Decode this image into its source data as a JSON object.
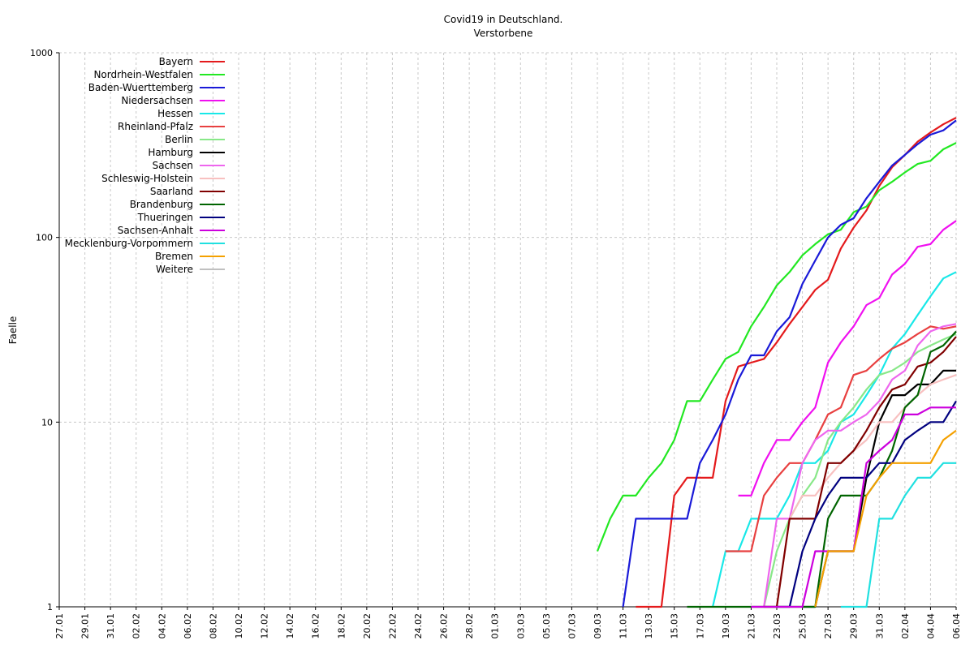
{
  "chart_data": {
    "type": "line",
    "title": "Covid19 in Deutschland.",
    "subtitle": "Verstorbene",
    "xlabel": "",
    "ylabel": "Faelle",
    "y_scale": "log",
    "ylim": [
      1,
      1000
    ],
    "y_ticks": [
      1,
      10,
      100,
      1000
    ],
    "grid": true,
    "legend_position": "top-left",
    "x_start": "27.01",
    "x_end": "06.04",
    "x_tick_labels": [
      "27.01",
      "29.01",
      "31.01",
      "02.02",
      "04.02",
      "06.02",
      "08.02",
      "10.02",
      "12.02",
      "14.02",
      "16.02",
      "18.02",
      "20.02",
      "22.02",
      "24.02",
      "26.02",
      "28.02",
      "01.03",
      "03.03",
      "05.03",
      "07.03",
      "09.03",
      "11.03",
      "13.03",
      "15.03",
      "17.03",
      "19.03",
      "21.03",
      "23.03",
      "25.03",
      "27.03",
      "29.03",
      "31.03",
      "02.04",
      "04.04",
      "06.04"
    ],
    "series": [
      {
        "name": "Bayern",
        "color": "#e41a1c",
        "x": [
          "12.03",
          "14.03",
          "15.03",
          "16.03",
          "17.03",
          "18.03",
          "19.03",
          "20.03",
          "21.03",
          "22.03",
          "23.03",
          "24.03",
          "25.03",
          "26.03",
          "27.03",
          "28.03",
          "29.03",
          "30.03",
          "31.03",
          "01.04",
          "02.04",
          "03.04",
          "04.04",
          "05.04",
          "06.04"
        ],
        "y": [
          1,
          1,
          4,
          5,
          5,
          5,
          13,
          20,
          21,
          22,
          27,
          34,
          42,
          52,
          59,
          87,
          113,
          140,
          190,
          240,
          280,
          330,
          370,
          410,
          445
        ]
      },
      {
        "name": "Nordrhein-Westfalen",
        "color": "#22e822",
        "x": [
          "09.03",
          "10.03",
          "11.03",
          "12.03",
          "13.03",
          "14.03",
          "15.03",
          "16.03",
          "17.03",
          "18.03",
          "19.03",
          "20.03",
          "21.03",
          "22.03",
          "23.03",
          "24.03",
          "25.03",
          "26.03",
          "27.03",
          "28.03",
          "29.03",
          "30.03",
          "31.03",
          "01.04",
          "02.04",
          "03.04",
          "04.04",
          "05.04",
          "06.04"
        ],
        "y": [
          2,
          3,
          4,
          4,
          5,
          6,
          8,
          13,
          13,
          17,
          22,
          24,
          33,
          42,
          55,
          65,
          80,
          92,
          104,
          110,
          137,
          147,
          180,
          200,
          225,
          250,
          260,
          300,
          325
        ]
      },
      {
        "name": "Baden-Wuerttemberg",
        "color": "#1a1ad8",
        "x": [
          "11.03",
          "12.03",
          "13.03",
          "14.03",
          "15.03",
          "16.03",
          "17.03",
          "18.03",
          "19.03",
          "20.03",
          "21.03",
          "22.03",
          "23.03",
          "24.03",
          "25.03",
          "26.03",
          "27.03",
          "28.03",
          "29.03",
          "30.03",
          "31.03",
          "01.04",
          "02.04",
          "03.04",
          "04.04",
          "05.04",
          "06.04"
        ],
        "y": [
          1,
          3,
          3,
          3,
          3,
          3,
          6,
          8,
          11,
          17,
          23,
          23,
          31,
          37,
          56,
          75,
          100,
          117,
          127,
          163,
          200,
          245,
          280,
          320,
          360,
          380,
          430
        ]
      },
      {
        "name": "Niedersachsen",
        "color": "#f010f0",
        "x": [
          "20.03",
          "21.03",
          "22.03",
          "23.03",
          "24.03",
          "25.03",
          "26.03",
          "27.03",
          "28.03",
          "29.03",
          "30.03",
          "31.03",
          "01.04",
          "02.04",
          "03.04",
          "04.04",
          "05.04",
          "06.04"
        ],
        "y": [
          4,
          4,
          6,
          8,
          8,
          10,
          12,
          21,
          27,
          33,
          43,
          47,
          63,
          72,
          89,
          92,
          110,
          123
        ]
      },
      {
        "name": "Hessen",
        "color": "#18e8e8",
        "x": [
          "18.03",
          "19.03",
          "20.03",
          "21.03",
          "22.03",
          "23.03",
          "24.03",
          "25.03",
          "26.03",
          "27.03",
          "28.03",
          "29.03",
          "30.03",
          "31.03",
          "01.04",
          "02.04",
          "03.04",
          "04.04",
          "05.04",
          "06.04"
        ],
        "y": [
          1,
          2,
          2,
          3,
          3,
          3,
          4,
          6,
          6,
          7,
          10,
          11,
          14,
          18,
          25,
          30,
          38,
          48,
          60,
          65
        ]
      },
      {
        "name": "Rheinland-Pfalz",
        "color": "#e84040",
        "x": [
          "19.03",
          "20.03",
          "21.03",
          "22.03",
          "23.03",
          "24.03",
          "25.03",
          "26.03",
          "27.03",
          "28.03",
          "29.03",
          "30.03",
          "31.03",
          "01.04",
          "02.04",
          "03.04",
          "04.04",
          "05.04",
          "06.04"
        ],
        "y": [
          2,
          2,
          2,
          4,
          5,
          6,
          6,
          8,
          11,
          12,
          18,
          19,
          22,
          25,
          27,
          30,
          33,
          32,
          33
        ]
      },
      {
        "name": "Berlin",
        "color": "#88e888",
        "x": [
          "22.03",
          "23.03",
          "24.03",
          "25.03",
          "26.03",
          "27.03",
          "28.03",
          "29.03",
          "30.03",
          "31.03",
          "01.04",
          "02.04",
          "03.04",
          "04.04",
          "05.04",
          "06.04"
        ],
        "y": [
          1,
          2,
          3,
          4,
          5,
          8,
          10,
          12,
          15,
          18,
          19,
          21,
          24,
          26,
          28,
          30
        ]
      },
      {
        "name": "Hamburg",
        "color": "#000000",
        "x": [
          "25.03",
          "26.03",
          "27.03",
          "28.03",
          "29.03",
          "30.03",
          "31.03",
          "01.04",
          "02.04",
          "03.04",
          "04.04",
          "05.04",
          "06.04"
        ],
        "y": [
          1,
          1,
          2,
          2,
          2,
          5,
          10,
          14,
          14,
          16,
          16,
          19,
          19
        ]
      },
      {
        "name": "Sachsen",
        "color": "#ee66ee",
        "x": [
          "21.03",
          "22.03",
          "23.03",
          "24.03",
          "25.03",
          "26.03",
          "27.03",
          "28.03",
          "29.03",
          "30.03",
          "31.03",
          "01.04",
          "02.04",
          "03.04",
          "04.04",
          "05.04",
          "06.04"
        ],
        "y": [
          1,
          1,
          3,
          3,
          6,
          8,
          9,
          9,
          10,
          11,
          13,
          17,
          19,
          26,
          31,
          33,
          34
        ]
      },
      {
        "name": "Schleswig-Holstein",
        "color": "#f8c0c0",
        "x": [
          "22.03",
          "23.03",
          "24.03",
          "25.03",
          "26.03",
          "27.03",
          "28.03",
          "29.03",
          "30.03",
          "31.03",
          "01.04",
          "02.04",
          "03.04",
          "04.04",
          "05.04",
          "06.04"
        ],
        "y": [
          1,
          1,
          3,
          4,
          4,
          5,
          6,
          7,
          8,
          10,
          10,
          12,
          14,
          16,
          17,
          18
        ]
      },
      {
        "name": "Saarland",
        "color": "#800000",
        "x": [
          "22.03",
          "23.03",
          "24.03",
          "25.03",
          "26.03",
          "27.03",
          "28.03",
          "29.03",
          "30.03",
          "31.03",
          "01.04",
          "02.04",
          "03.04",
          "04.04",
          "05.04",
          "06.04"
        ],
        "y": [
          1,
          1,
          3,
          3,
          3,
          6,
          6,
          7,
          9,
          12,
          15,
          16,
          20,
          21,
          24,
          29
        ]
      },
      {
        "name": "Brandenburg",
        "color": "#006400",
        "x": [
          "16.03",
          "17.03",
          "18.03",
          "19.03",
          "20.03",
          "21.03",
          "22.03",
          "23.03",
          "24.03",
          "25.03",
          "26.03",
          "27.03",
          "28.03",
          "29.03",
          "30.03",
          "31.03",
          "01.04",
          "02.04",
          "03.04",
          "04.04",
          "05.04",
          "06.04"
        ],
        "y": [
          1,
          1,
          1,
          1,
          1,
          1,
          1,
          1,
          1,
          1,
          1,
          3,
          4,
          4,
          4,
          5,
          7,
          12,
          14,
          24,
          26,
          31
        ]
      },
      {
        "name": "Thueringen",
        "color": "#00007f",
        "x": [
          "23.03",
          "24.03",
          "25.03",
          "26.03",
          "27.03",
          "28.03",
          "29.03",
          "30.03",
          "31.03",
          "01.04",
          "02.04",
          "03.04",
          "04.04",
          "05.04",
          "06.04"
        ],
        "y": [
          1,
          1,
          2,
          3,
          4,
          5,
          5,
          5,
          6,
          6,
          8,
          9,
          10,
          10,
          13
        ]
      },
      {
        "name": "Sachsen-Anhalt",
        "color": "#cc00dd",
        "x": [
          "21.03",
          "22.03",
          "23.03",
          "24.03",
          "25.03",
          "26.03",
          "27.03",
          "28.03",
          "29.03",
          "30.03",
          "31.03",
          "01.04",
          "02.04",
          "03.04",
          "04.04",
          "05.04",
          "06.04"
        ],
        "y": [
          1,
          1,
          1,
          1,
          1,
          2,
          2,
          2,
          2,
          6,
          7,
          8,
          11,
          11,
          12,
          12,
          12
        ]
      },
      {
        "name": "Mecklenburg-Vorpommern",
        "color": "#20e0e0",
        "x": [
          "28.03",
          "29.03",
          "30.03",
          "31.03",
          "01.04",
          "02.04",
          "03.04",
          "04.04",
          "05.04",
          "06.04"
        ],
        "y": [
          1,
          1,
          1,
          3,
          3,
          4,
          5,
          5,
          6,
          6
        ]
      },
      {
        "name": "Bremen",
        "color": "#f4a000",
        "x": [
          "26.03",
          "27.03",
          "28.03",
          "29.03",
          "30.03",
          "31.03",
          "01.04",
          "02.04",
          "03.04",
          "04.04",
          "05.04",
          "06.04"
        ],
        "y": [
          1,
          2,
          2,
          2,
          4,
          5,
          6,
          6,
          6,
          6,
          8,
          9
        ]
      },
      {
        "name": "Weitere",
        "color": "#c0c0c0",
        "x": [],
        "y": []
      }
    ]
  }
}
